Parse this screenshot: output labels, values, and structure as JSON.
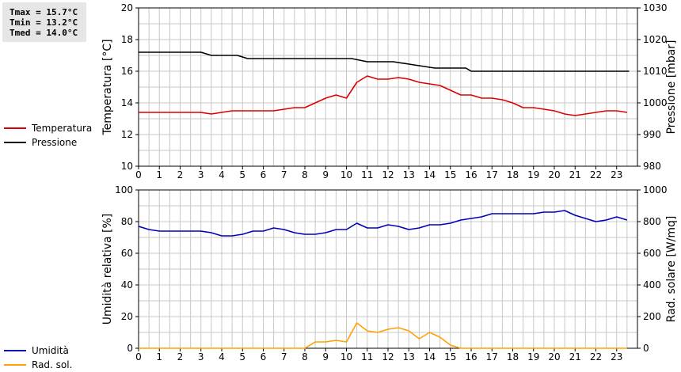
{
  "stats": {
    "tmax": "Tmax = 15.7°C",
    "tmin": "Tmin = 13.2°C",
    "tmed": "Tmed = 14.0°C"
  },
  "colors": {
    "temperatura": "#dd0000",
    "pressione": "#000000",
    "umidita": "#0000bb",
    "rad_sol": "#ffa000",
    "grid": "#c8c8c8"
  },
  "chart_data": [
    {
      "type": "line",
      "title": "",
      "xlabel": "",
      "ylabel": "Temperatura [°C]",
      "y2label": "Pressione [mbar]",
      "xlim": [
        0,
        24
      ],
      "ylim": [
        10,
        20
      ],
      "y2lim": [
        980,
        1030
      ],
      "xticks": [
        "0",
        "1",
        "2",
        "3",
        "4",
        "5",
        "6",
        "7",
        "8",
        "9",
        "10",
        "11",
        "12",
        "13",
        "14",
        "15",
        "16",
        "17",
        "18",
        "19",
        "20",
        "21",
        "22",
        "23"
      ],
      "yticks": [
        "10",
        "12",
        "14",
        "16",
        "18",
        "20"
      ],
      "y2ticks": [
        "980",
        "990",
        "1000",
        "1010",
        "1020",
        "1030"
      ],
      "grid": true,
      "legend": "left",
      "series": [
        {
          "name": "Temperatura",
          "axis": "left",
          "step": false,
          "x": [
            0,
            0.5,
            1,
            1.5,
            2,
            2.5,
            3,
            3.5,
            4,
            4.5,
            5,
            5.5,
            6,
            6.5,
            7,
            7.5,
            8,
            8.5,
            9,
            9.5,
            10,
            10.5,
            11,
            11.5,
            12,
            12.5,
            13,
            13.5,
            14,
            14.5,
            15,
            15.5,
            16,
            16.5,
            17,
            17.5,
            18,
            18.5,
            19,
            19.5,
            20,
            20.5,
            21,
            21.5,
            22,
            22.5,
            23,
            23.5
          ],
          "values": [
            13.4,
            13.4,
            13.4,
            13.4,
            13.4,
            13.4,
            13.4,
            13.3,
            13.4,
            13.5,
            13.5,
            13.5,
            13.5,
            13.5,
            13.6,
            13.7,
            13.7,
            14.0,
            14.3,
            14.5,
            14.3,
            15.3,
            15.7,
            15.5,
            15.5,
            15.6,
            15.5,
            15.3,
            15.2,
            15.1,
            14.8,
            14.5,
            14.5,
            14.3,
            14.3,
            14.2,
            14.0,
            13.7,
            13.7,
            13.6,
            13.5,
            13.3,
            13.2,
            13.3,
            13.4,
            13.5,
            13.5,
            13.4
          ]
        },
        {
          "name": "Pressione",
          "axis": "right",
          "step": true,
          "x": [
            0,
            3,
            3.5,
            4.75,
            5.25,
            10.25,
            11,
            12.25,
            13.25,
            14.25,
            15.75,
            16,
            23.6
          ],
          "values": [
            1016,
            1016,
            1015,
            1015,
            1014,
            1014,
            1013,
            1013,
            1012,
            1011,
            1011,
            1010,
            1010
          ]
        }
      ]
    },
    {
      "type": "line",
      "title": "",
      "xlabel": "",
      "ylabel": "Umidità relativa [%]",
      "y2label": "Rad. solare [W/mq]",
      "xlim": [
        0,
        24
      ],
      "ylim": [
        0,
        100
      ],
      "y2lim": [
        0,
        1000
      ],
      "xticks": [
        "0",
        "1",
        "2",
        "3",
        "4",
        "5",
        "6",
        "7",
        "8",
        "9",
        "10",
        "11",
        "12",
        "13",
        "14",
        "15",
        "16",
        "17",
        "18",
        "19",
        "20",
        "21",
        "22",
        "23"
      ],
      "yticks": [
        "0",
        "20",
        "40",
        "60",
        "80",
        "100"
      ],
      "y2ticks": [
        "0",
        "200",
        "400",
        "600",
        "800",
        "1000"
      ],
      "grid": true,
      "legend": "left",
      "series": [
        {
          "name": "Umidità",
          "axis": "left",
          "step": false,
          "x": [
            0,
            0.5,
            1,
            1.5,
            2,
            2.5,
            3,
            3.5,
            4,
            4.5,
            5,
            5.5,
            6,
            6.5,
            7,
            7.5,
            8,
            8.5,
            9,
            9.5,
            10,
            10.5,
            11,
            11.5,
            12,
            12.5,
            13,
            13.5,
            14,
            14.5,
            15,
            15.5,
            16,
            16.5,
            17,
            17.5,
            18,
            18.5,
            19,
            19.5,
            20,
            20.5,
            21,
            21.5,
            22,
            22.5,
            23,
            23.5
          ],
          "values": [
            77,
            75,
            74,
            74,
            74,
            74,
            74,
            73,
            71,
            71,
            72,
            74,
            74,
            76,
            75,
            73,
            72,
            72,
            73,
            75,
            75,
            79,
            76,
            76,
            78,
            77,
            75,
            76,
            78,
            78,
            79,
            81,
            82,
            83,
            85,
            85,
            85,
            85,
            85,
            86,
            86,
            87,
            84,
            82,
            80,
            81,
            83,
            81
          ]
        },
        {
          "name": "Rad. sol.",
          "axis": "right",
          "step": false,
          "x": [
            0,
            0.5,
            1,
            1.5,
            2,
            2.5,
            3,
            3.5,
            4,
            4.5,
            5,
            5.5,
            6,
            6.5,
            7,
            7.5,
            8,
            8.5,
            9,
            9.5,
            10,
            10.5,
            11,
            11.5,
            12,
            12.5,
            13,
            13.5,
            14,
            14.5,
            15,
            15.5,
            16,
            16.5,
            17,
            17.5,
            18,
            18.5,
            19,
            19.5,
            20,
            20.5,
            21,
            21.5,
            22,
            22.5,
            23,
            23.5
          ],
          "values": [
            0,
            0,
            0,
            0,
            0,
            0,
            0,
            0,
            0,
            0,
            0,
            0,
            0,
            0,
            0,
            0,
            0,
            40,
            40,
            50,
            40,
            160,
            110,
            100,
            120,
            130,
            110,
            60,
            100,
            70,
            20,
            0,
            0,
            0,
            0,
            0,
            0,
            0,
            0,
            0,
            0,
            0,
            0,
            0,
            0,
            0,
            0,
            0
          ]
        }
      ]
    }
  ]
}
